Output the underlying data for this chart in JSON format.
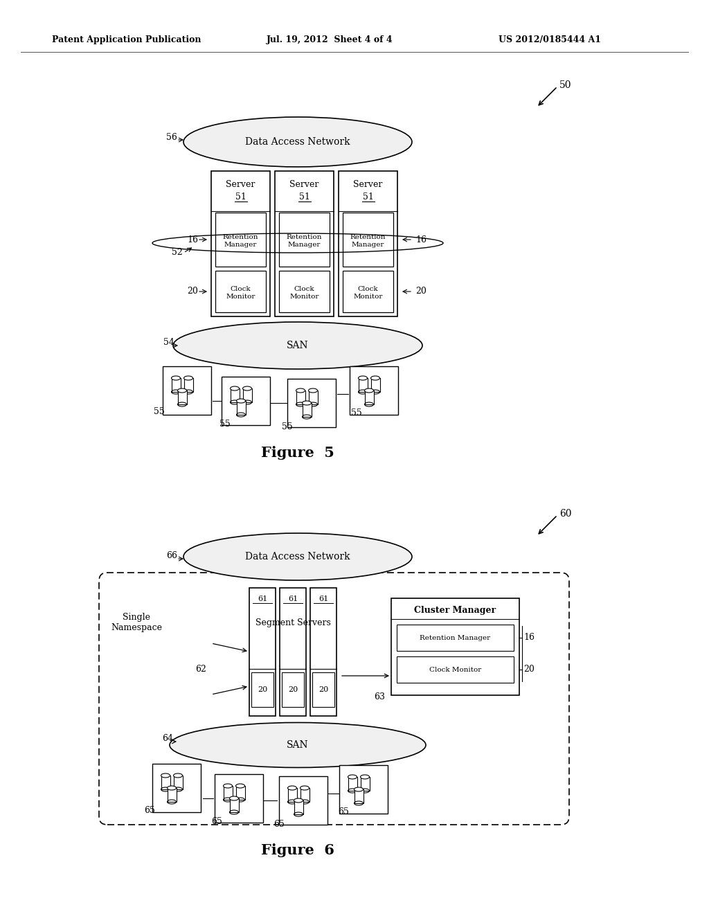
{
  "header_left": "Patent Application Publication",
  "header_mid": "Jul. 19, 2012  Sheet 4 of 4",
  "header_right": "US 2012/0185444 A1",
  "fig5_label": "Figure  5",
  "fig6_label": "Figure  6",
  "fig5_number": "50",
  "fig5_dan_label": "Data Access Network",
  "fig5_san_label": "SAN",
  "fig5_ref56": "56",
  "fig5_ref54": "54",
  "fig5_ref52": "52",
  "fig5_ref16_left": "16",
  "fig5_ref16_right": "16",
  "fig5_ref20_left": "20",
  "fig5_ref20_right": "20",
  "fig5_ref55": "55",
  "fig6_number": "60",
  "fig6_dan_label": "Data Access Network",
  "fig6_san_label": "SAN",
  "fig6_ref66": "66",
  "fig6_ref64": "64",
  "fig6_ref62": "62",
  "fig6_ref63": "63",
  "fig6_ref16": "16",
  "fig6_ref20": "20",
  "fig6_ref65": "65",
  "fig6_single_ns": "Single\nNamespace",
  "fig6_segment_servers": "Segment Servers",
  "fig6_cluster_manager": "Cluster Manager",
  "fig6_retention": "Retention Manager",
  "fig6_clock": "Clock Monitor",
  "server_label": "Server",
  "server_num": "51",
  "retention_label": "Retention\nManager",
  "clock_label": "Clock\nMonitor",
  "fig6_ref61": "61",
  "fig6_ref20s": "20",
  "bg_color": "#ffffff"
}
